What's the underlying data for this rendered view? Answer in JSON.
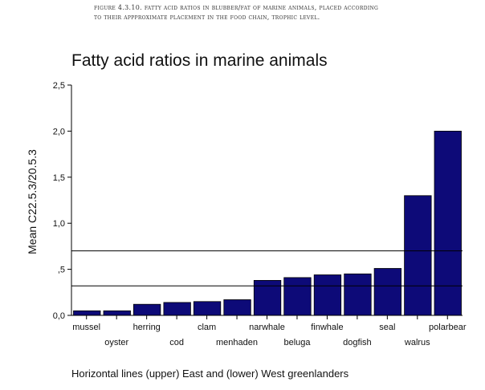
{
  "caption": {
    "line1": "Figure 4.3.10. Fatty acid ratios in blubber/fat of marine animals, placed according",
    "line2": "to their appproximate placement in the food chain, trophic level."
  },
  "footnote": "Horizontal lines (upper) East and (lower) West greenlanders",
  "chart_data": {
    "type": "bar",
    "title": "Fatty acid ratios in marine animals",
    "ylabel": "Mean C22.5.3/20.5.3",
    "xlabel": "",
    "ylim": [
      0,
      2.5
    ],
    "yticks": [
      {
        "value": 0.0,
        "label": "0,0"
      },
      {
        "value": 0.5,
        "label": ",5"
      },
      {
        "value": 1.0,
        "label": "1,0"
      },
      {
        "value": 1.5,
        "label": "1,5"
      },
      {
        "value": 2.0,
        "label": "2,0"
      },
      {
        "value": 2.5,
        "label": "2,5"
      }
    ],
    "categories": [
      "mussel",
      "oyster",
      "herring",
      "cod",
      "clam",
      "menhaden",
      "narwhale",
      "beluga",
      "finwhale",
      "dogfish",
      "seal",
      "walrus",
      "polarbear"
    ],
    "values": [
      0.05,
      0.05,
      0.12,
      0.14,
      0.15,
      0.17,
      0.38,
      0.41,
      0.44,
      0.45,
      0.51,
      1.3,
      2.0
    ],
    "reference_lines": [
      0.7,
      0.32
    ],
    "bar_color": "#0d0a78",
    "grid": false
  }
}
